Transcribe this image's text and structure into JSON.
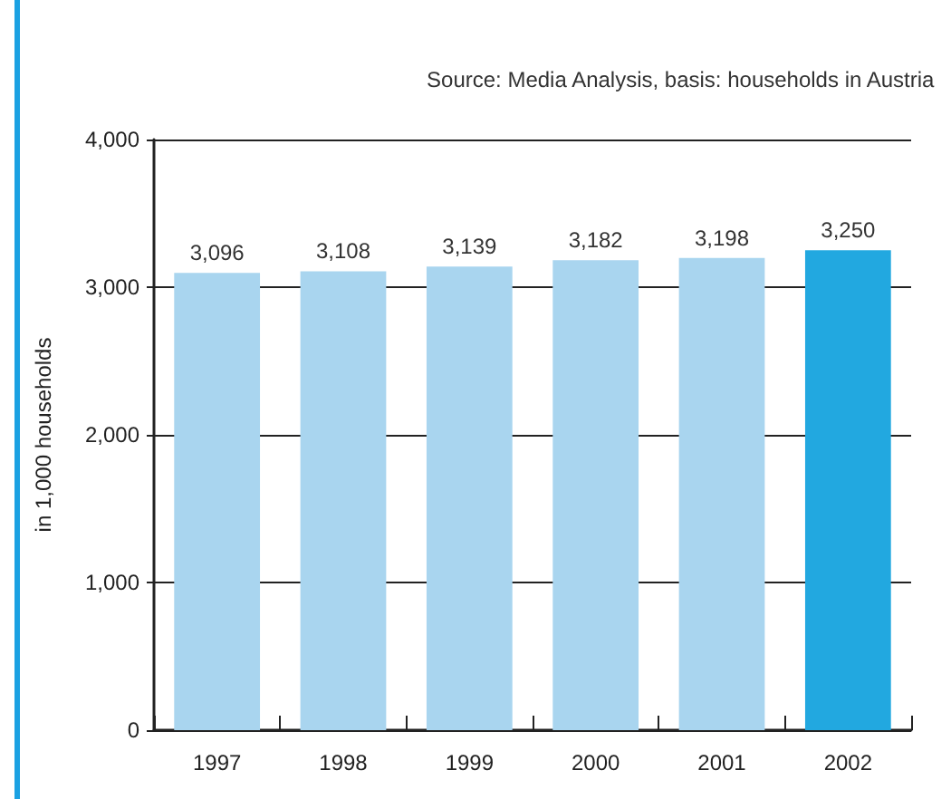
{
  "chart_data": {
    "type": "bar",
    "ylabel": "in 1,000 households",
    "annotations": [
      "Source: Media Analysis, basis: households in Austria"
    ],
    "categories": [
      "1997",
      "1998",
      "1999",
      "2000",
      "2001",
      "2002"
    ],
    "values": [
      3096,
      3108,
      3139,
      3182,
      3198,
      3250
    ],
    "value_labels": [
      "3,096",
      "3,108",
      "3,139",
      "3,182",
      "3,198",
      "3,250"
    ],
    "colors": [
      "#a9d5ef",
      "#a9d5ef",
      "#a9d5ef",
      "#a9d5ef",
      "#a9d5ef",
      "#22a8e0"
    ],
    "ylim": [
      0,
      4000
    ],
    "yticks": [
      0,
      {
        "value": 1000,
        "label": "1,000"
      },
      {
        "value": 2000,
        "label": "2,000"
      },
      {
        "value": 3000,
        "label": "3,000"
      },
      {
        "value": 4000,
        "label": "4,000"
      }
    ],
    "grid": "y"
  }
}
